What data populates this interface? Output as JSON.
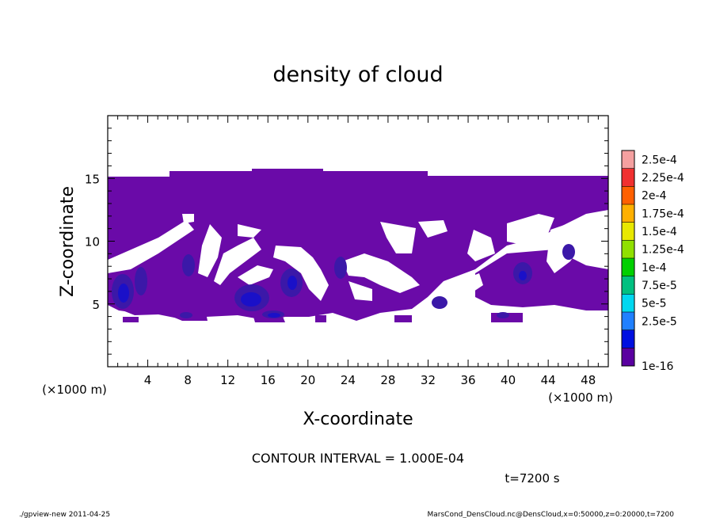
{
  "chart_data": {
    "type": "heatmap",
    "title": "density of cloud",
    "xlabel": "X-coordinate",
    "ylabel": "Z-coordinate",
    "x_unit": "(×1000 m)",
    "z_unit": "(×1000 m)",
    "xlim": [
      0,
      50
    ],
    "zlim": [
      0,
      20
    ],
    "x_ticks": [
      "4",
      "8",
      "12",
      "16",
      "20",
      "24",
      "28",
      "32",
      "36",
      "40",
      "44",
      "48"
    ],
    "z_ticks": [
      "5",
      "10",
      "15"
    ],
    "contour_interval": "CONTOUR INTERVAL = 1.000E-04",
    "time_label": "t=7200 s",
    "colorbar": {
      "labels": [
        "2.5e-4",
        "2.25e-4",
        "2e-4",
        "1.75e-4",
        "1.5e-4",
        "1.25e-4",
        "1e-4",
        "7.5e-5",
        "5e-5",
        "2.5e-5",
        "1e-16"
      ],
      "colors": [
        "#f4a0a0",
        "#f03030",
        "#ff6000",
        "#ffb000",
        "#e8e800",
        "#90e000",
        "#00d000",
        "#00c080",
        "#00d8f0",
        "#2080ff",
        "#0010e0",
        "#5a00a0"
      ]
    },
    "cloud_top_z": 15.0,
    "cloud_bottom_z": 3.6,
    "footer_left": "./gpview-new  2011-04-25",
    "footer_right": "MarsCond_DensCloud.nc@DensCloud,x=0:50000,z=0:20000,t=7200"
  }
}
